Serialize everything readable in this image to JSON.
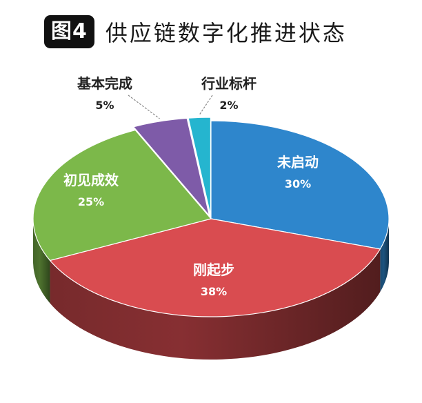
{
  "figure": {
    "badge": "图4",
    "title": "供应链数字化推进状态"
  },
  "chart_data": {
    "type": "pie",
    "title": "供应链数字化推进状态",
    "unit": "%",
    "slices": [
      {
        "label": "未启动",
        "value": 30,
        "value_text": "30%",
        "color": "#2e86cc"
      },
      {
        "label": "刚起步",
        "value": 38,
        "value_text": "38%",
        "color": "#d94c50"
      },
      {
        "label": "初见成效",
        "value": 25,
        "value_text": "25%",
        "color": "#7cb84a"
      },
      {
        "label": "基本完成",
        "value": 5,
        "value_text": "5%",
        "color": "#7e5ba8"
      },
      {
        "label": "行业标杆",
        "value": 2,
        "value_text": "2%",
        "color": "#25b5cf"
      }
    ]
  }
}
